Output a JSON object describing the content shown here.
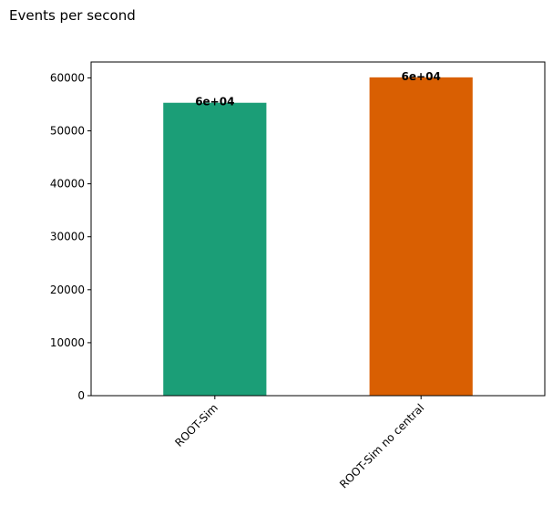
{
  "page": {
    "title": "Events per second"
  },
  "chart_data": {
    "type": "bar",
    "title": "",
    "xlabel": "",
    "ylabel": "",
    "categories": [
      "ROOT-Sim",
      "ROOT-Sim no central"
    ],
    "values": [
      55300,
      60100
    ],
    "bar_labels": [
      "6e+04",
      "6e+04"
    ],
    "colors": [
      "#1b9e77",
      "#d95f02"
    ],
    "ylim": [
      0,
      63000
    ],
    "yticks": [
      0,
      10000,
      20000,
      30000,
      40000,
      50000,
      60000
    ],
    "ytick_labels": [
      "0",
      "10000",
      "20000",
      "30000",
      "40000",
      "50000",
      "60000"
    ],
    "xtick_rotation": "45 degrees",
    "grid": false,
    "legend": "none"
  }
}
